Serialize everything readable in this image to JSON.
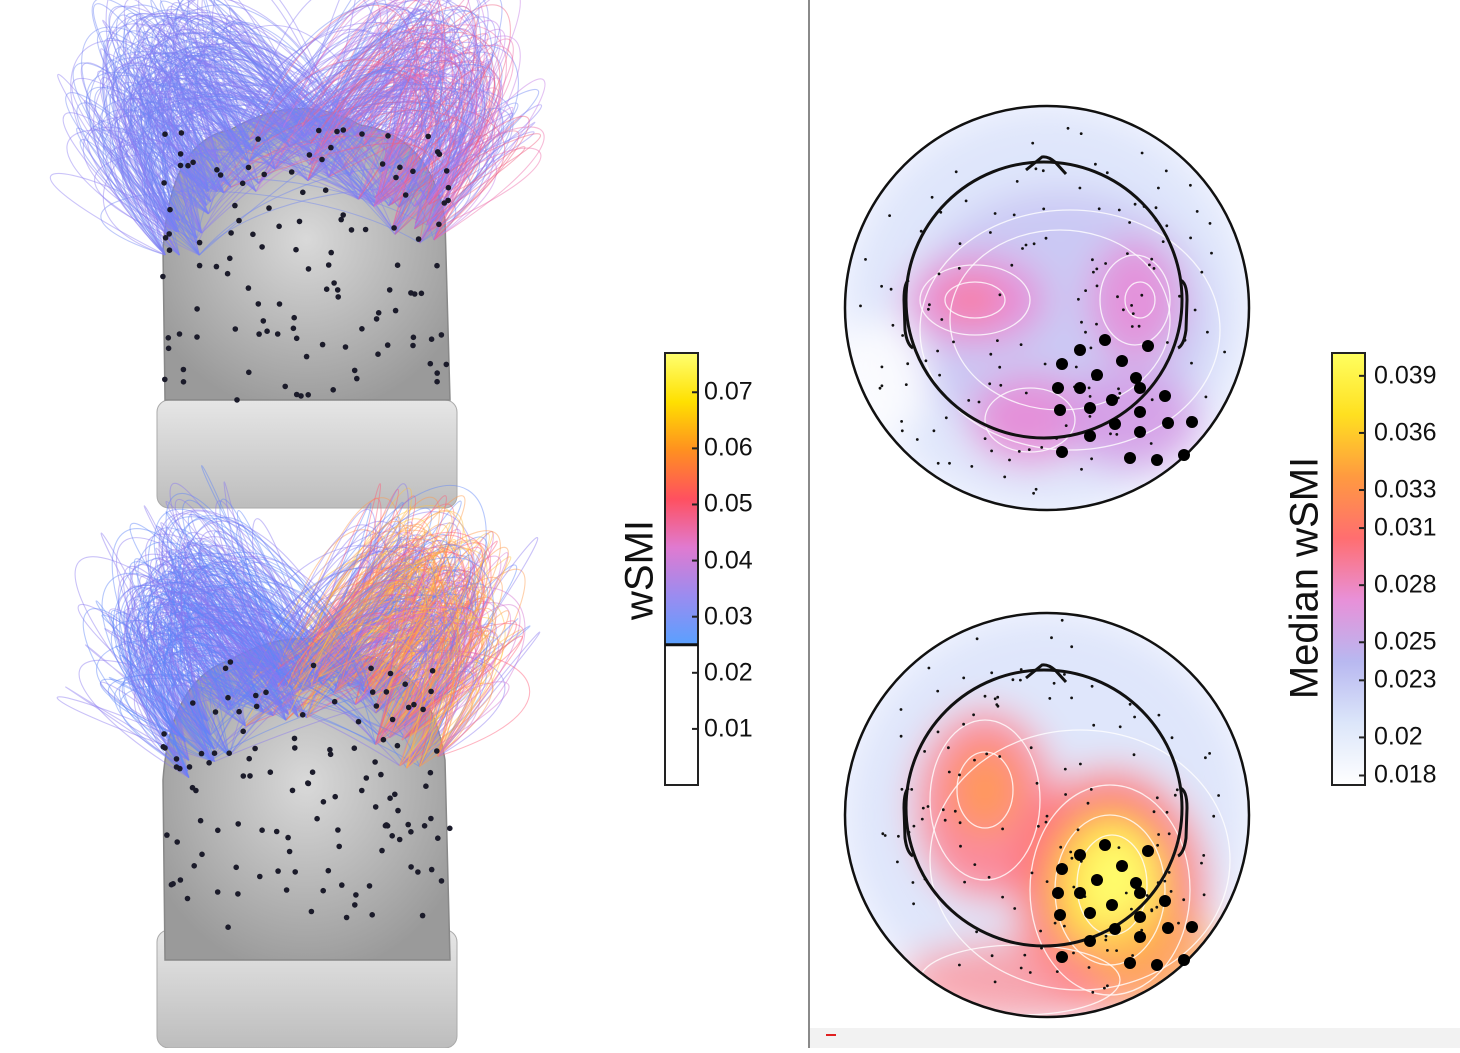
{
  "left_colorbar": {
    "label": "wSMI",
    "ticks": [
      {
        "value": 0.07,
        "text": "0.07"
      },
      {
        "value": 0.06,
        "text": "0.06"
      },
      {
        "value": 0.05,
        "text": "0.05"
      },
      {
        "value": 0.04,
        "text": "0.04"
      },
      {
        "value": 0.03,
        "text": "0.03"
      },
      {
        "value": 0.02,
        "text": "0.02"
      },
      {
        "value": 0.01,
        "text": "0.01"
      }
    ],
    "range": [
      0.0,
      0.077
    ],
    "threshold": 0.025,
    "colors": [
      "#ffffff",
      "#5aa0ff",
      "#9a8cf0",
      "#e07ad0",
      "#ff5060",
      "#ff9020",
      "#ffe000",
      "#ffff70"
    ]
  },
  "right_colorbar": {
    "label": "Median wSMI",
    "ticks": [
      {
        "value": 0.039,
        "text": "0.039"
      },
      {
        "value": 0.036,
        "text": "0.036"
      },
      {
        "value": 0.033,
        "text": "0.033"
      },
      {
        "value": 0.031,
        "text": "0.031"
      },
      {
        "value": 0.028,
        "text": "0.028"
      },
      {
        "value": 0.025,
        "text": "0.025"
      },
      {
        "value": 0.023,
        "text": "0.023"
      },
      {
        "value": 0.02,
        "text": "0.02"
      },
      {
        "value": 0.018,
        "text": "0.018"
      }
    ],
    "colors": [
      "#ffffff",
      "#dce6fa",
      "#b8b8f0",
      "#e890d8",
      "#ff6e70",
      "#ff9a40",
      "#ffe020",
      "#ffff60"
    ]
  },
  "brains": [
    {
      "id": "top",
      "arc_palette": [
        "#6f86f5",
        "#8c7cf2",
        "#c47ae4",
        "#ee6aa8",
        "#f06080"
      ]
    },
    {
      "id": "bottom",
      "arc_palette": [
        "#5f86f8",
        "#8a78f0",
        "#d270d0",
        "#ff5a78",
        "#ff9a4a",
        "#ffc040"
      ]
    }
  ],
  "topomaps": [
    {
      "id": "top",
      "peak_level": 0.031
    },
    {
      "id": "bottom",
      "peak_level": 0.039
    }
  ]
}
